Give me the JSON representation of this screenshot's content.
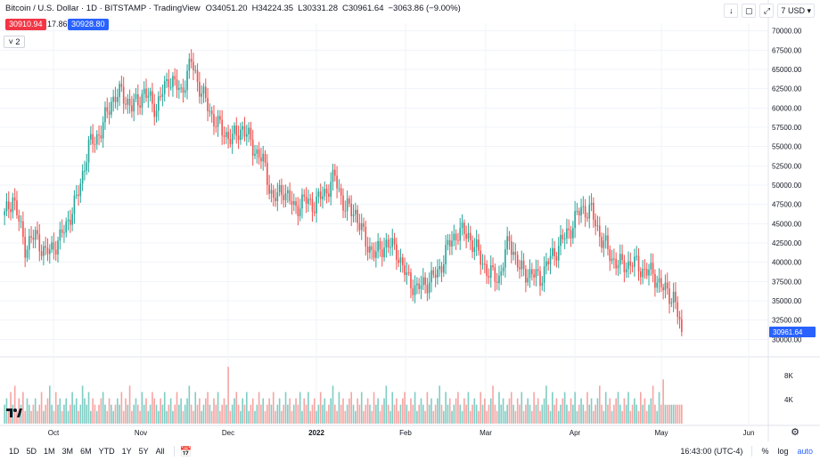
{
  "header": {
    "symbol": "Bitcoin / U.S. Dollar · 1D · BITSTAMP · TradingView",
    "open": "O34051.20",
    "high": "H34224.35",
    "low": "L30331.28",
    "close": "C30961.64",
    "change": "−3063.86 (−9.00%)",
    "sell_price": "30910.94",
    "spread": "17.86",
    "buy_price": "30928.80",
    "collapse_label": "˅ 2",
    "currency": "USD"
  },
  "toolbar": {
    "alert_count": "7",
    "buttons": [
      "arrow-down-icon",
      "square-icon",
      "maximize-icon"
    ]
  },
  "colors": {
    "up": "#26a69a",
    "down": "#ef5350",
    "up_vol": "#7fcdc4",
    "down_vol": "#f5a5a3",
    "sell_box": "#f23645",
    "buy_box": "#2962ff",
    "last_price_tag": "#2962ff"
  },
  "chart_data": {
    "type": "candlestick",
    "title": "Bitcoin / U.S. Dollar",
    "y_axis_ticks": [
      "70000.00",
      "67500.00",
      "65000.00",
      "62500.00",
      "60000.00",
      "57500.00",
      "55000.00",
      "52500.00",
      "50000.00",
      "47500.00",
      "45000.00",
      "42500.00",
      "40000.00",
      "37500.00",
      "35000.00",
      "32500.00",
      "30000.00"
    ],
    "ylim": [
      29000,
      71000
    ],
    "x_axis_ticks": [
      "Oct",
      "Nov",
      "Dec",
      "2022",
      "Feb",
      "Mar",
      "Apr",
      "May",
      "Jun"
    ],
    "last_price": "30961.64",
    "volume_axis_ticks": [
      "8K",
      "4K"
    ],
    "close_anchors": [
      [
        0,
        46000
      ],
      [
        4,
        48500
      ],
      [
        10,
        42000
      ],
      [
        15,
        43500
      ],
      [
        20,
        41000
      ],
      [
        27,
        43000
      ],
      [
        35,
        48000
      ],
      [
        41,
        55000
      ],
      [
        47,
        57000
      ],
      [
        52,
        61000
      ],
      [
        57,
        62000
      ],
      [
        62,
        60000
      ],
      [
        68,
        62000
      ],
      [
        74,
        60000
      ],
      [
        80,
        64000
      ],
      [
        86,
        62000
      ],
      [
        91,
        66000
      ],
      [
        96,
        62000
      ],
      [
        101,
        59000
      ],
      [
        106,
        57000
      ],
      [
        111,
        56000
      ],
      [
        116,
        57500
      ],
      [
        121,
        55000
      ],
      [
        126,
        53000
      ],
      [
        131,
        48000
      ],
      [
        136,
        49500
      ],
      [
        141,
        47000
      ],
      [
        146,
        48000
      ],
      [
        151,
        47500
      ],
      [
        156,
        49000
      ],
      [
        161,
        51000
      ],
      [
        166,
        47000
      ],
      [
        171,
        46500
      ],
      [
        176,
        42500
      ],
      [
        181,
        41000
      ],
      [
        186,
        42500
      ],
      [
        191,
        41500
      ],
      [
        196,
        38000
      ],
      [
        201,
        36500
      ],
      [
        206,
        37500
      ],
      [
        211,
        38500
      ],
      [
        216,
        42000
      ],
      [
        221,
        44000
      ],
      [
        226,
        43500
      ],
      [
        231,
        41000
      ],
      [
        236,
        38500
      ],
      [
        241,
        38000
      ],
      [
        246,
        43000
      ],
      [
        251,
        39000
      ],
      [
        256,
        38500
      ],
      [
        261,
        38000
      ],
      [
        266,
        40500
      ],
      [
        271,
        42500
      ],
      [
        276,
        44500
      ],
      [
        281,
        47000
      ],
      [
        286,
        46500
      ],
      [
        291,
        43000
      ],
      [
        296,
        40500
      ],
      [
        301,
        39500
      ],
      [
        306,
        40000
      ],
      [
        311,
        39000
      ],
      [
        316,
        38500
      ],
      [
        321,
        36500
      ],
      [
        326,
        35500
      ],
      [
        330,
        30961
      ]
    ],
    "volume_values": [
      3,
      4,
      2,
      5,
      3,
      6,
      2,
      4,
      3,
      5,
      2,
      4,
      3,
      2,
      3,
      4,
      2,
      3,
      5,
      2,
      3,
      4,
      6,
      3,
      2,
      5,
      3,
      4,
      2,
      3,
      4,
      2,
      3,
      5,
      3,
      4,
      2,
      3,
      6,
      4,
      3,
      5,
      2,
      4,
      3,
      2,
      3,
      4,
      5,
      3,
      2,
      4,
      3,
      2,
      3,
      4,
      3,
      5,
      2,
      4,
      3,
      6,
      2,
      3,
      4,
      3,
      2,
      5,
      3,
      4,
      2,
      3,
      5,
      4,
      3,
      2,
      4,
      3,
      5,
      2,
      3,
      4,
      2,
      3,
      5,
      3,
      4,
      2,
      3,
      4,
      6,
      3,
      2,
      5,
      3,
      4,
      2,
      3,
      4,
      5,
      3,
      2,
      4,
      3,
      5,
      2,
      3,
      4,
      3,
      9,
      2,
      3,
      4,
      5,
      3,
      2,
      4,
      3,
      5,
      2,
      3,
      4,
      2,
      3,
      5,
      3,
      4,
      2,
      3,
      4,
      3,
      5,
      2,
      3,
      4,
      2,
      3,
      5,
      3,
      4,
      2,
      3,
      4,
      3,
      5,
      2,
      4,
      3,
      5,
      2,
      3,
      4,
      2,
      3,
      5,
      3,
      4,
      2,
      3,
      4,
      6,
      3,
      2,
      5,
      3,
      4,
      2,
      3,
      4,
      5,
      3,
      2,
      4,
      3,
      5,
      2,
      3,
      4,
      3,
      2,
      5,
      3,
      4,
      2,
      3,
      4,
      6,
      3,
      2,
      5,
      3,
      4,
      2,
      3,
      4,
      5,
      3,
      2,
      4,
      3,
      5,
      2,
      3,
      4,
      3,
      2,
      5,
      3,
      4,
      2,
      3,
      4,
      6,
      3,
      2,
      5,
      3,
      4,
      2,
      3,
      4,
      5,
      3,
      2,
      4,
      3,
      5,
      2,
      3,
      4,
      3,
      2,
      5,
      3,
      4,
      2,
      3,
      4,
      6,
      3,
      2,
      5,
      3,
      4,
      2,
      3,
      4,
      5,
      3,
      2,
      4,
      3,
      5,
      2,
      3,
      4,
      3,
      2,
      5,
      3,
      4,
      2,
      3,
      4,
      6,
      3,
      2,
      5,
      3,
      4,
      2,
      3,
      4,
      5,
      3,
      2,
      4,
      3,
      5,
      2,
      3,
      4,
      3,
      2,
      5,
      3,
      4,
      2,
      3,
      4,
      6,
      3,
      2,
      5,
      3,
      4,
      2,
      3,
      4,
      5,
      3,
      2,
      4,
      3,
      5,
      2,
      3,
      4,
      3,
      2,
      5,
      3,
      4,
      2,
      3,
      4,
      6,
      3,
      2,
      5,
      3,
      7
    ]
  },
  "bottom_bar": {
    "ranges": [
      "1D",
      "5D",
      "1M",
      "3M",
      "6M",
      "YTD",
      "1Y",
      "5Y",
      "All"
    ],
    "time": "16:43:00 (UTC-4)",
    "percent_label": "%",
    "log_label": "log",
    "auto_label": "auto"
  }
}
